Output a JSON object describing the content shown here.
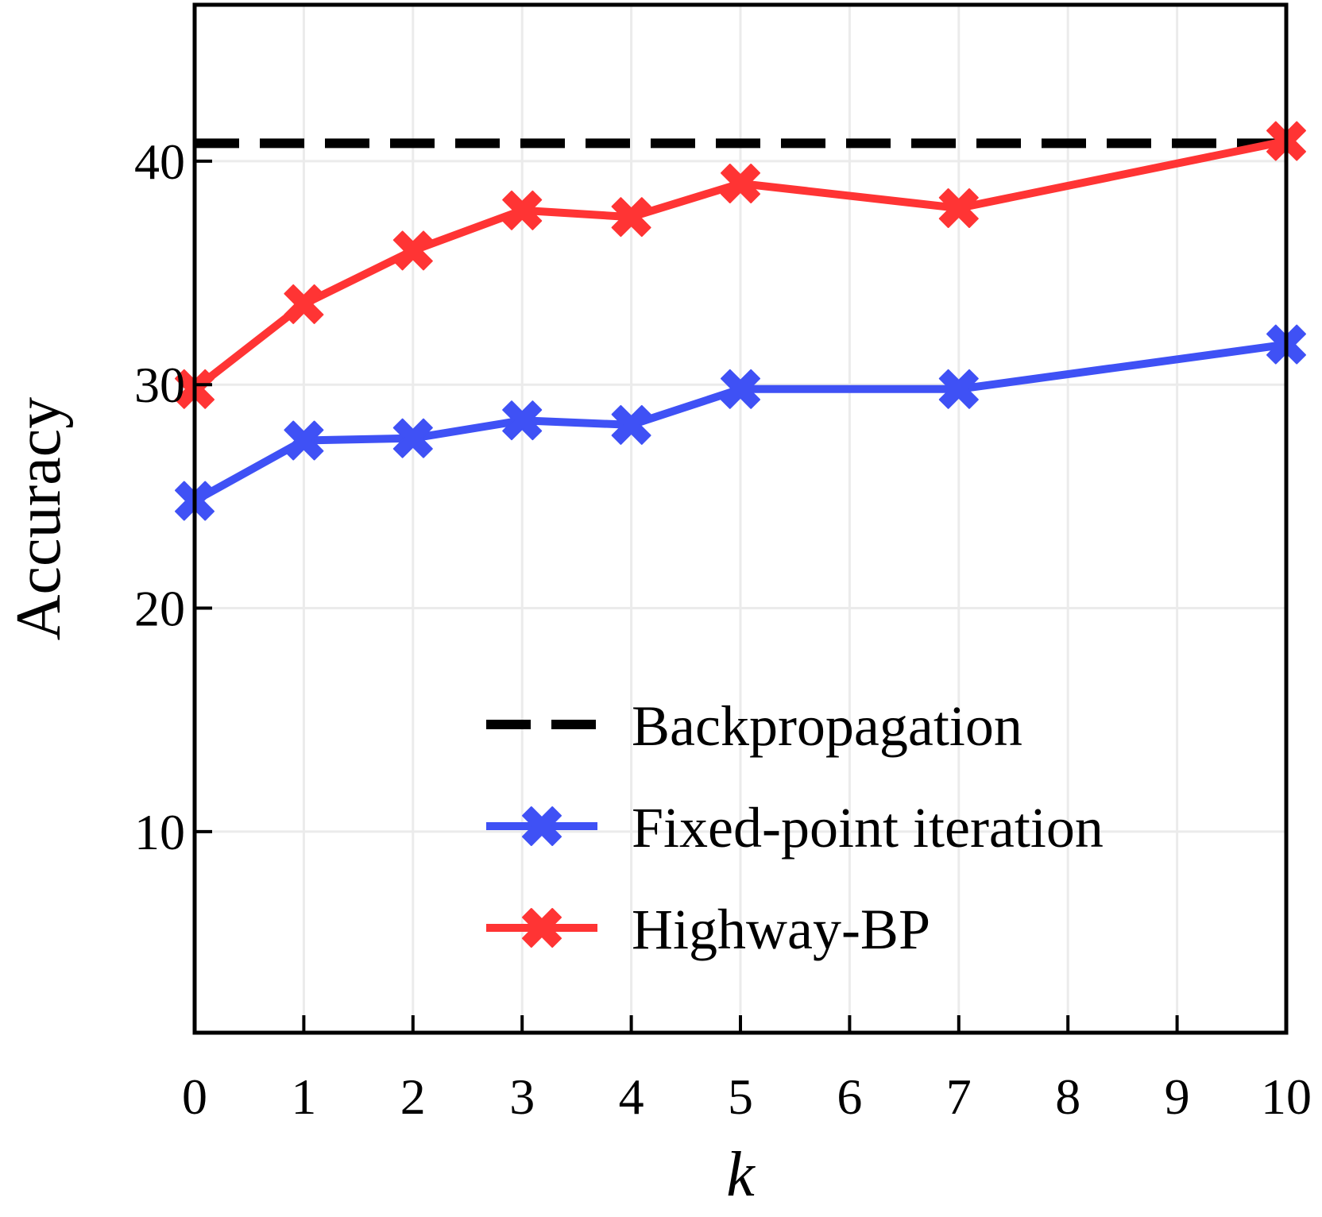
{
  "chart_data": {
    "type": "line",
    "title": "",
    "xlabel": "k",
    "ylabel": "Accuracy",
    "xlim": [
      0,
      10
    ],
    "ylim": [
      1,
      47
    ],
    "grid": true,
    "legend_position": "bottom-right",
    "x_ticks": [
      0,
      1,
      2,
      3,
      4,
      5,
      6,
      7,
      8,
      9,
      10
    ],
    "x_tick_labels": [
      "0",
      "1",
      "2",
      "3",
      "4",
      "5",
      "6",
      "7",
      "8",
      "9",
      "10"
    ],
    "y_ticks": [
      10,
      20,
      30,
      40
    ],
    "y_tick_labels": [
      "10",
      "20",
      "30",
      "40"
    ],
    "baseline": {
      "name": "Backpropagation",
      "value": 40.8,
      "color": "#000000",
      "style": "dashed"
    },
    "series": [
      {
        "name": "Fixed-point iteration",
        "color": "#3f51f5",
        "marker": "X",
        "x": [
          0,
          1,
          2,
          3,
          4,
          5,
          7,
          10
        ],
        "y": [
          24.8,
          27.5,
          27.6,
          28.4,
          28.2,
          29.8,
          29.8,
          31.8
        ]
      },
      {
        "name": "Highway-BP",
        "color": "#ff3434",
        "marker": "X",
        "x": [
          0,
          1,
          2,
          3,
          4,
          5,
          7,
          10
        ],
        "y": [
          29.8,
          33.6,
          36.0,
          37.8,
          37.5,
          39.0,
          37.9,
          40.9
        ]
      }
    ]
  }
}
